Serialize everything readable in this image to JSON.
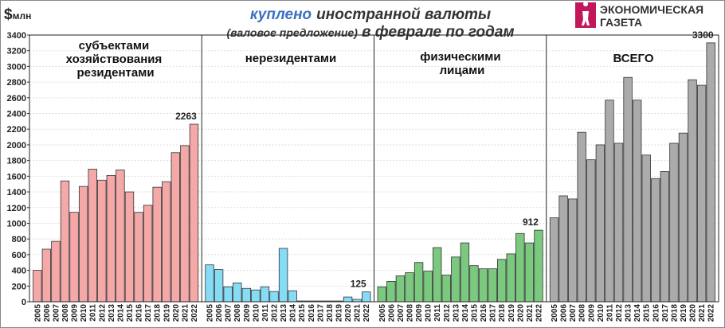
{
  "chart_data": {
    "type": "bar",
    "title_highlight": "куплено",
    "title": "иностранной валюты",
    "subtitle_note": "(валовое предложение)",
    "subtitle": "в феврале по годам",
    "ylabel_symbol": "$",
    "ylabel_unit": "млн",
    "logo": [
      "ЭКОНОМИЧЕСКАЯ",
      "ГАЗЕТА"
    ],
    "categories": [
      "2005",
      "2006",
      "2007",
      "2008",
      "2009",
      "2010",
      "2011",
      "2012",
      "2013",
      "2014",
      "2015",
      "2016",
      "2017",
      "2018",
      "2019",
      "2020",
      "2021",
      "2022"
    ],
    "series": [
      {
        "name": "субъектами хозяйствования резидентами",
        "color": "#f5a8a8",
        "values": [
          400,
          670,
          770,
          1540,
          1140,
          1470,
          1690,
          1550,
          1610,
          1680,
          1400,
          1140,
          1230,
          1460,
          1530,
          1900,
          1990,
          2263
        ]
      },
      {
        "name": "нерезидентами",
        "color": "#86dbf5",
        "values": [
          470,
          410,
          190,
          240,
          170,
          150,
          190,
          130,
          680,
          140,
          10,
          10,
          10,
          10,
          10,
          60,
          30,
          125
        ]
      },
      {
        "name": "физическими лицами",
        "color": "#7bc97e",
        "values": [
          190,
          260,
          330,
          370,
          500,
          390,
          690,
          340,
          570,
          750,
          460,
          420,
          420,
          540,
          610,
          870,
          750,
          912
        ]
      },
      {
        "name": "ВСЕГО",
        "color": "#ababab",
        "values": [
          1070,
          1350,
          1310,
          2160,
          1810,
          2000,
          2570,
          2020,
          2860,
          2570,
          1870,
          1570,
          1660,
          2020,
          2150,
          2830,
          2760,
          3300
        ]
      }
    ],
    "ylim": [
      0,
      3400
    ],
    "yticks": [
      0,
      200,
      400,
      600,
      800,
      1000,
      1200,
      1400,
      1600,
      1800,
      2000,
      2200,
      2400,
      2600,
      2800,
      3000,
      3200,
      3400
    ],
    "grid": true
  }
}
